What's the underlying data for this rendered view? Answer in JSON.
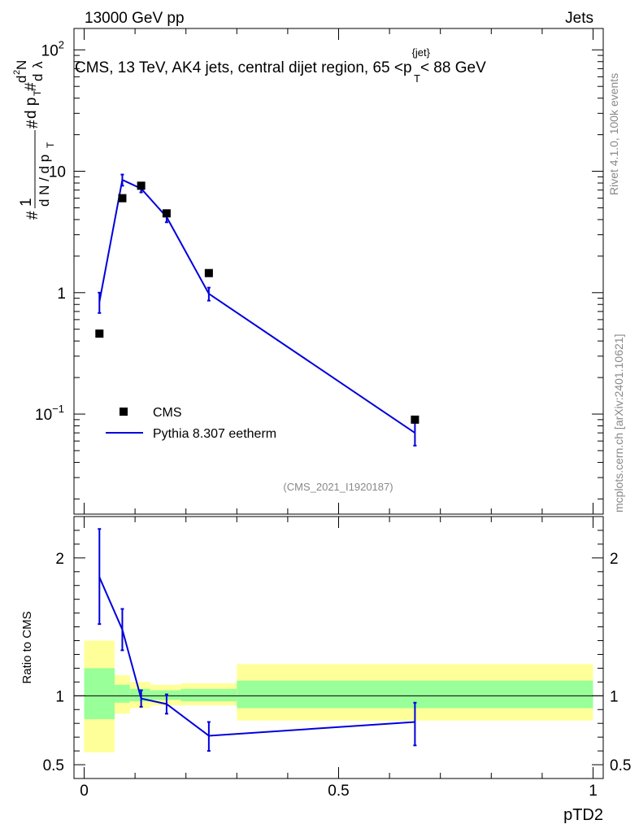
{
  "header": {
    "left": "13000 GeV pp",
    "right": "Jets",
    "title": "CMS, 13 TeV, AK4 jets, central dijet region, 65 <p",
    "title_sup": "{jet}",
    "title_sub": "T",
    "title_end": "< 88 GeV",
    "side_rivet": "Rivet 4.1.0,  100k events",
    "side_url": "mcplots.cern.ch [arXiv:2401.10621]",
    "analysis_id": "(CMS_2021_I1920187)"
  },
  "legend": {
    "cms": "CMS",
    "mc": "Pythia 8.307 eetherm"
  },
  "colors": {
    "data": "#000000",
    "mc": "#0000dd",
    "band_inner": "#99ff99",
    "band_outer": "#ffff99"
  },
  "chart_data": [
    {
      "type": "scatter",
      "panel": "main",
      "ylabel": "1/(dN/dpT) d²N/(dpT dλ)",
      "yscale": "log",
      "ylim": [
        0.015,
        150
      ],
      "xlim": [
        -0.02,
        1.02
      ],
      "yticks": [
        {
          "v": 100,
          "base": "10",
          "exp": "2"
        },
        {
          "v": 10,
          "label": "10"
        },
        {
          "v": 1,
          "label": "1"
        },
        {
          "v": 0.1,
          "base": "10",
          "exp": "−1"
        }
      ],
      "series": [
        {
          "name": "CMS",
          "x": [
            0.03,
            0.075,
            0.112,
            0.162,
            0.245,
            0.65
          ],
          "y": [
            0.46,
            6.0,
            7.6,
            4.5,
            1.45,
            0.09
          ]
        },
        {
          "name": "Pythia 8.307 eetherm",
          "x": [
            0.03,
            0.075,
            0.112,
            0.162,
            0.245,
            0.65
          ],
          "y": [
            0.84,
            8.5,
            7.2,
            4.2,
            0.98,
            0.07
          ],
          "err_lo": [
            0.68,
            7.6,
            6.7,
            3.8,
            0.86,
            0.055
          ],
          "err_hi": [
            1.0,
            9.4,
            7.7,
            4.6,
            1.1,
            0.085
          ]
        }
      ]
    },
    {
      "type": "line",
      "panel": "ratio",
      "xlabel": "pTD2",
      "ylabel": "Ratio to CMS",
      "ylim": [
        0.4,
        2.3
      ],
      "xlim": [
        -0.02,
        1.02
      ],
      "yticks": [
        {
          "v": 2,
          "label": "2"
        },
        {
          "v": 1,
          "label": "1"
        },
        {
          "v": 0.5,
          "label": "0.5"
        }
      ],
      "xticks": [
        {
          "v": 0,
          "label": "0"
        },
        {
          "v": 0.5,
          "label": "0.5"
        },
        {
          "v": 1,
          "label": "1"
        }
      ],
      "series": [
        {
          "name": "Pythia 8.307 eetherm / CMS",
          "x": [
            0.03,
            0.075,
            0.112,
            0.162,
            0.245,
            0.65
          ],
          "y": [
            1.86,
            1.48,
            0.98,
            0.94,
            0.71,
            0.81
          ],
          "err_lo": [
            1.52,
            1.33,
            0.92,
            0.87,
            0.6,
            0.64
          ],
          "err_hi": [
            2.21,
            1.63,
            1.04,
            1.01,
            0.81,
            0.95
          ]
        }
      ],
      "bands": [
        {
          "x0": 0.0,
          "x1": 0.06,
          "inner": [
            0.83,
            1.2
          ],
          "outer": [
            0.59,
            1.4
          ]
        },
        {
          "x0": 0.06,
          "x1": 0.09,
          "inner": [
            0.95,
            1.08
          ],
          "outer": [
            0.87,
            1.15
          ]
        },
        {
          "x0": 0.09,
          "x1": 0.13,
          "inner": [
            0.96,
            1.05
          ],
          "outer": [
            0.91,
            1.1
          ]
        },
        {
          "x0": 0.13,
          "x1": 0.19,
          "inner": [
            0.97,
            1.04
          ],
          "outer": [
            0.93,
            1.08
          ]
        },
        {
          "x0": 0.19,
          "x1": 0.3,
          "inner": [
            0.96,
            1.05
          ],
          "outer": [
            0.93,
            1.09
          ]
        },
        {
          "x0": 0.3,
          "x1": 1.0,
          "inner": [
            0.91,
            1.11
          ],
          "outer": [
            0.82,
            1.23
          ]
        }
      ]
    }
  ]
}
